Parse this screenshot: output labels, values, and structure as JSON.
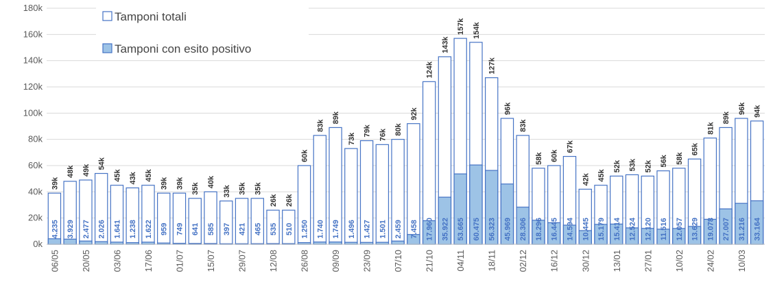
{
  "chart_data": {
    "type": "bar",
    "categories": [
      "06/05",
      null,
      "20/05",
      null,
      "03/06",
      null,
      "17/06",
      null,
      "01/07",
      null,
      "15/07",
      null,
      "29/07",
      null,
      "12/08",
      null,
      "26/08",
      null,
      "09/09",
      null,
      "23/09",
      null,
      "07/10",
      null,
      "21/10",
      null,
      "04/11",
      null,
      "18/11",
      null,
      "02/12",
      null,
      "16/12",
      null,
      "30/12",
      null,
      "13/01",
      null,
      "27/01",
      null,
      "10/02",
      null,
      "24/02",
      null,
      "10/03",
      null
    ],
    "series": [
      {
        "name": "Tamponi totali",
        "color": "#4472c4",
        "fill": "#ffffff",
        "values": [
          39000,
          48000,
          49000,
          54000,
          45000,
          43000,
          45000,
          39000,
          39000,
          35000,
          40000,
          33000,
          35000,
          35000,
          26000,
          26000,
          60000,
          83000,
          89000,
          73000,
          79000,
          76000,
          80000,
          92000,
          124000,
          143000,
          157000,
          154000,
          127000,
          96000,
          83000,
          58000,
          60000,
          67000,
          42000,
          45000,
          52000,
          53000,
          52000,
          56000,
          58000,
          65000,
          81000,
          89000,
          96000,
          94000
        ],
        "value_labels": [
          "39k",
          "48k",
          "49k",
          "54k",
          "45k",
          "43k",
          "45k",
          "39k",
          "39k",
          "35k",
          "40k",
          "33k",
          "35k",
          "35k",
          "26k",
          "26k",
          "60k",
          "83k",
          "89k",
          "73k",
          "79k",
          "76k",
          "80k",
          "92k",
          "124k",
          "143k",
          "157k",
          "154k",
          "127k",
          "96k",
          "83k",
          "58k",
          "60k",
          "67k",
          "42k",
          "45k",
          "52k",
          "53k",
          "52k",
          "56k",
          "58k",
          "65k",
          "81k",
          "89k",
          "96k",
          "94k"
        ]
      },
      {
        "name": "Tamponi con esito positivo",
        "color": "#4472c4",
        "fill": "#9dc3e6",
        "values": [
          4235,
          3929,
          2477,
          2026,
          1641,
          1238,
          1622,
          959,
          749,
          641,
          585,
          397,
          421,
          465,
          535,
          510,
          1250,
          1740,
          1749,
          1496,
          1427,
          1501,
          2459,
          7458,
          17960,
          35922,
          53665,
          60475,
          56323,
          45969,
          28306,
          18296,
          16445,
          14594,
          10445,
          15179,
          15414,
          12524,
          12120,
          11516,
          12057,
          13629,
          19078,
          27007,
          31216,
          33164
        ],
        "value_labels": [
          "4.235",
          "3.929",
          "2.477",
          "2.026",
          "1.641",
          "1.238",
          "1.622",
          "959",
          "749",
          "641",
          "585",
          "397",
          "421",
          "465",
          "535",
          "510",
          "1.250",
          "1.740",
          "1.749",
          "1.496",
          "1.427",
          "1.501",
          "2.459",
          "7.458",
          "17.960",
          "35.922",
          "53.665",
          "60.475",
          "56.323",
          "45.969",
          "28.306",
          "18.296",
          "16.445",
          "14.594",
          "10.445",
          "15.179",
          "15.414",
          "12.524",
          "12.120",
          "11.516",
          "12.057",
          "13.629",
          "19.078",
          "27.007",
          "31.216",
          "33.164"
        ]
      }
    ],
    "ylim": [
      0,
      180000
    ],
    "yticks": [
      {
        "value": 0,
        "label": "0k"
      },
      {
        "value": 20000,
        "label": "20k"
      },
      {
        "value": 40000,
        "label": "40k"
      },
      {
        "value": 60000,
        "label": "60k"
      },
      {
        "value": 80000,
        "label": "80k"
      },
      {
        "value": 100000,
        "label": "100k"
      },
      {
        "value": 120000,
        "label": "120k"
      },
      {
        "value": 140000,
        "label": "140k"
      },
      {
        "value": 160000,
        "label": "160k"
      },
      {
        "value": 180000,
        "label": "180k"
      }
    ],
    "grid": true,
    "legend": "top-left"
  }
}
